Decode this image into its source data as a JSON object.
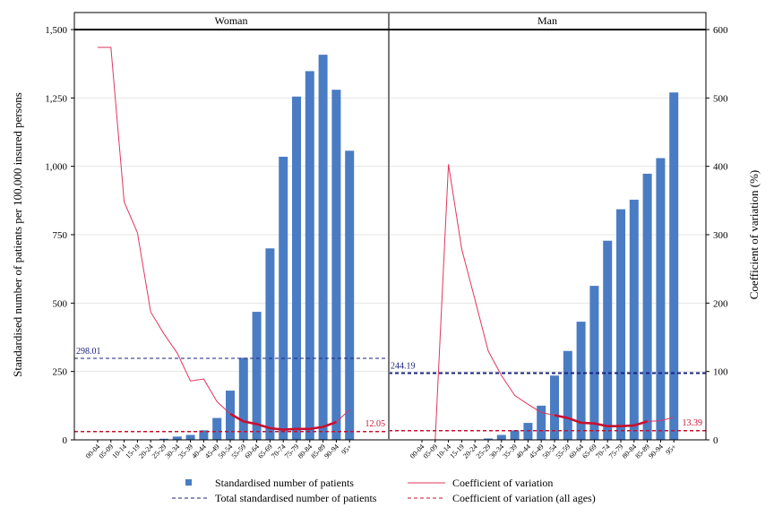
{
  "chart_data": {
    "type": "bar",
    "panels": [
      {
        "title": "Woman",
        "categories": [
          "00-04",
          "05-09",
          "10-14",
          "15-19",
          "20-24",
          "25-29",
          "30-34",
          "35-39",
          "40-44",
          "45-49",
          "50-54",
          "55-59",
          "60-64",
          "65-69",
          "70-74",
          "75-79",
          "80-84",
          "85-89",
          "90-94",
          "95+"
        ],
        "series": [
          {
            "name": "Standardised number of patients",
            "type": "bar",
            "axis": "left",
            "values": [
              0,
              0,
              0,
              0,
              0,
              4,
              12,
              18,
              35,
              80,
              180,
              300,
              468,
              700,
              1035,
              1255,
              1348,
              1408,
              1280,
              1057
            ]
          },
          {
            "name": "Coefficient of variation",
            "type": "line",
            "axis": "right",
            "values": [
              574,
              574,
              348,
              303,
              187,
              155,
              127,
              86,
              89,
              56,
              38,
              27,
              23,
              17,
              15,
              16,
              16,
              19,
              26,
              44
            ]
          }
        ],
        "total_standardised": 298.01,
        "total_standardised_label": "298.01",
        "cv_all_ages": 12.05,
        "cv_all_ages_label": "12.05"
      },
      {
        "title": "Man",
        "categories": [
          "00-04",
          "05-09",
          "10-14",
          "15-19",
          "20-24",
          "25-29",
          "30-34",
          "35-39",
          "40-44",
          "45-49",
          "50-54",
          "55-59",
          "60-64",
          "65-69",
          "70-74",
          "75-79",
          "80-84",
          "85-89",
          "90-94",
          "95+"
        ],
        "series": [
          {
            "name": "Standardised number of patients",
            "type": "bar",
            "axis": "left",
            "values": [
              0,
              0,
              0,
              0,
              0,
              5,
              18,
              35,
              62,
              125,
              235,
              325,
              432,
              563,
              728,
              843,
              878,
              973,
              1030,
              1270
            ]
          },
          {
            "name": "Coefficient of variation",
            "type": "line",
            "axis": "right",
            "values": [
              0,
              0,
              403,
              279,
              205,
              130,
              94,
              65,
              52,
              40,
              36,
              32,
              25,
              24,
              20,
              20,
              21,
              27,
              28,
              33
            ]
          }
        ],
        "total_standardised": 244.19,
        "total_standardised_label": "244.19",
        "cv_all_ages": 13.39,
        "cv_all_ages_label": "13.39"
      }
    ],
    "ylabel": "Standardised number of patients per 100,000 insured persons",
    "y2label": "Coefficient of variation (%)",
    "ylim": [
      0,
      1500
    ],
    "y2lim": [
      0,
      600
    ],
    "yticks": [
      0,
      250,
      500,
      750,
      1000,
      1250,
      1500
    ],
    "ytick_labels": [
      "0",
      "250",
      "500",
      "750",
      "1,000",
      "1,250",
      "1,500"
    ],
    "y2ticks": [
      0,
      100,
      200,
      300,
      400,
      500,
      600
    ],
    "y2tick_labels": [
      "0",
      "100",
      "200",
      "300",
      "400",
      "500",
      "600"
    ],
    "grid": true,
    "legend": {
      "placement": "bottom",
      "items": [
        {
          "label": "Standardised number of patients",
          "kind": "bar"
        },
        {
          "label": "Coefficient of variation",
          "kind": "line"
        },
        {
          "label": "Total standardised number of patients",
          "kind": "dash-blue"
        },
        {
          "label": "Coefficient of variation (all ages)",
          "kind": "dash-red"
        }
      ]
    },
    "colors": {
      "bar": "#4a7cc4",
      "cv_line": "#e0365e",
      "cv_highlight": "#c8102e",
      "total_ref": "#1a237e",
      "cv_ref": "#c8102e",
      "grid": "#e6e6e6"
    }
  }
}
